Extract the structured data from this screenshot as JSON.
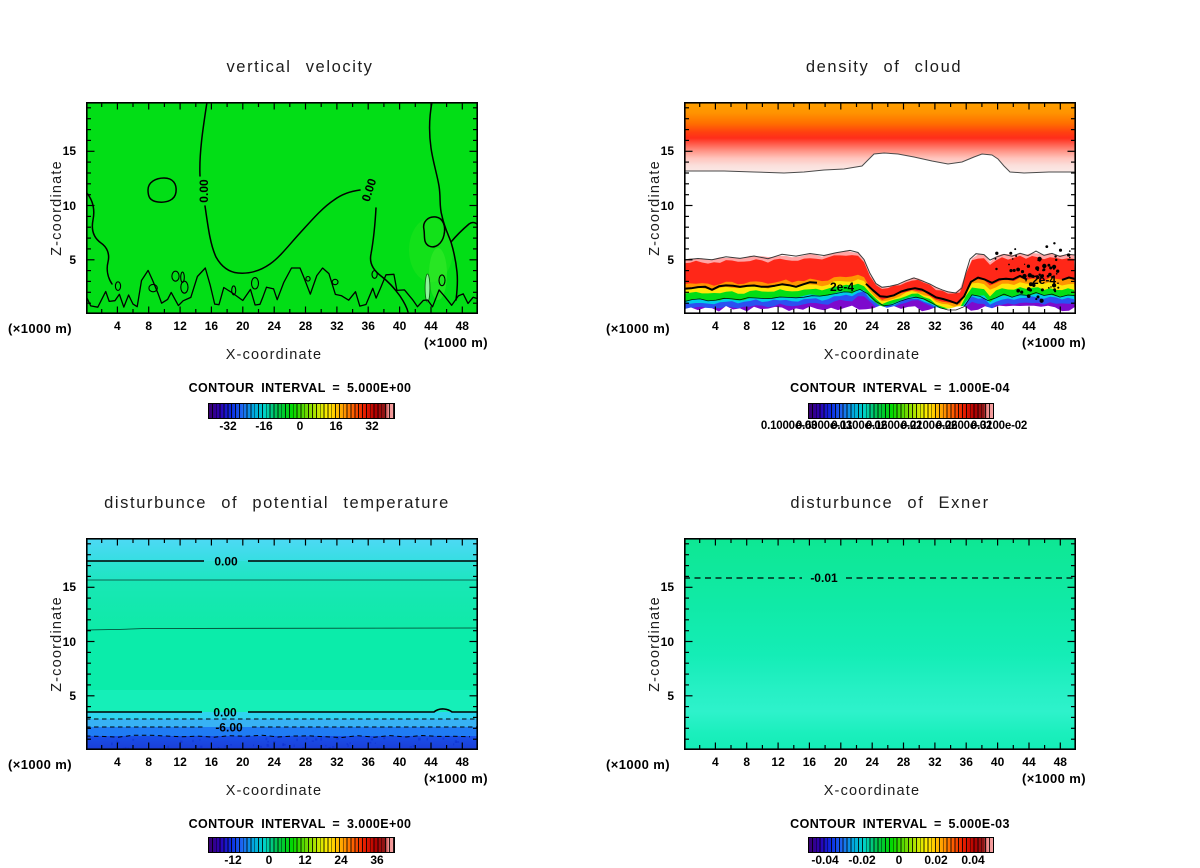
{
  "shared": {
    "x_axis_label": "X-coordinate",
    "z_axis_label": "Z-coordinate",
    "unit_label": "(×1000 m)",
    "x_tick_labels": [
      4,
      8,
      12,
      16,
      20,
      24,
      28,
      32,
      36,
      40,
      44,
      48
    ],
    "z_tick_labels": [
      5,
      10,
      15
    ]
  },
  "panels": {
    "vertical_velocity": {
      "title": "vertical velocity",
      "contour_label": "0.00",
      "colorbar": {
        "title": "CONTOUR INTERVAL = 5.000E+00",
        "ticks": [
          "-32",
          "-16",
          "0",
          "16",
          "32"
        ]
      }
    },
    "density_of_cloud": {
      "title": "density of cloud",
      "contour_label": "2e-4",
      "colorbar": {
        "title": "CONTOUR INTERVAL = 1.000E-04",
        "ticks": [
          "0.1000e-03",
          "0.6000e-03",
          "0.1100e-02",
          "0.1600e-02",
          "0.2100e-02",
          "0.2600e-02",
          "0.3100e-02"
        ]
      }
    },
    "theta": {
      "title": "disturbunce of potential temperature",
      "contour_label_zero": "0.00",
      "contour_label_minus6": "-6.00",
      "colorbar": {
        "title": "CONTOUR INTERVAL = 3.000E+00",
        "ticks": [
          "-12",
          "0",
          "12",
          "24",
          "36"
        ]
      }
    },
    "exner": {
      "title": "disturbunce of Exner",
      "contour_label": "-0.01",
      "colorbar": {
        "title": "CONTOUR INTERVAL = 5.000E-03",
        "ticks": [
          "-0.04",
          "-0.02",
          "0",
          "0.02",
          "0.04"
        ]
      }
    }
  },
  "colors": {
    "vv_field_green": "#02de16",
    "cloud_top_orange": "#ffa200",
    "cloud_red": "#ff2d1a",
    "cloud_pink": "#ffa6a6",
    "theta_cyan": "#4ed9f5",
    "theta_teal": "#0becaa",
    "theta_deep_blue": "#1c3dd6",
    "exner_teal": "#12ebae",
    "contour_black": "#000000"
  },
  "chart_data": [
    {
      "type": "heatmap",
      "subtype": "filled-contour",
      "title": "vertical velocity",
      "xlabel": "X-coordinate (×1000 m)",
      "ylabel": "Z-coordinate (×1000 m)",
      "x_range": [
        0,
        50
      ],
      "z_range": [
        0,
        19.6
      ],
      "x_ticks": [
        4,
        8,
        12,
        16,
        20,
        24,
        28,
        32,
        36,
        40,
        44,
        48
      ],
      "z_ticks": [
        5,
        10,
        15
      ],
      "contour_interval": 5.0,
      "colorbar_ticks": [
        -32,
        -16,
        0,
        16,
        32
      ],
      "labeled_contours": [
        "0.00"
      ],
      "field_summary": "Field is ~0 m/s everywhere (uniform green at the 0 color level). A meandering 0.00 contour runs from the top near x=16 down to z~4.5 at x=20, rises to a plateau z~13 over x=32-36, then descends; a second 0.00 contour descends near x=44-50; small closed 0-contours near (9,12) and (44,7.5); many fine-scale wiggly contours hugging the surface below z~2."
    },
    {
      "type": "heatmap",
      "subtype": "filled-contour",
      "title": "density of cloud",
      "xlabel": "X-coordinate (×1000 m)",
      "ylabel": "Z-coordinate (×1000 m)",
      "x_range": [
        0,
        50
      ],
      "z_range": [
        0,
        19.6
      ],
      "contour_interval": 0.0001,
      "colorbar_ticks": [
        "0.1000e-03",
        "0.6000e-03",
        "0.1100e-02",
        "0.1600e-02",
        "0.2100e-02",
        "0.2600e-02",
        "0.3100e-02"
      ],
      "labeled_contours": [
        "2e-4"
      ],
      "field_summary": "Upper cloud layer from z~13.5 to top: values increase upward from ~1e-4 (pink) to ~2.5e-3 (orange) at the top edge; its base lifts to z~15 over x~23-36. Clear (blank) air between z~5 and z~13.5. Lower stratified cloud below z~5: rainbow layering red/orange/yellow/green/cyan/blue/purple downward, with the labeled 2e-4 contour near z~3; the layer thins to z~3 over x~24-35; speckled convective dots around x~40-44, z~3-6."
    },
    {
      "type": "heatmap",
      "subtype": "filled-contour",
      "title": "disturbunce of potential temperature",
      "xlabel": "X-coordinate (×1000 m)",
      "ylabel": "Z-coordinate (×1000 m)",
      "x_range": [
        0,
        50
      ],
      "z_range": [
        0,
        19.6
      ],
      "contour_interval": 3.0,
      "colorbar_ticks": [
        -12,
        0,
        12,
        24,
        36
      ],
      "labeled_contours": [
        "0.00",
        "-6.00"
      ],
      "profile": [
        {
          "z": "18.0-19.6",
          "approx_value": "-3 (cyan)"
        },
        {
          "z": "15.8-18.0",
          "approx_value": "-1 to 0"
        },
        {
          "z": "3.4-15.8",
          "approx_value": "0 to +2 (teal-green)"
        },
        {
          "z": "2.9-3.4",
          "approx_value": "-3 (cyan)"
        },
        {
          "z": "2.3-2.9",
          "approx_value": "-6 (light blue)"
        },
        {
          "z": "1.4-2.3",
          "approx_value": "-9 (blue)"
        },
        {
          "z": "0-1.4",
          "approx_value": "-12 (deep blue)"
        }
      ],
      "field_summary": "Horizontally uniform layers: solid 0.00 contours at z~18 and z~3.4, dashed negative contours (including -6.00) stacked below z~3, deep blue near-surface minimum."
    },
    {
      "type": "heatmap",
      "subtype": "filled-contour",
      "title": "disturbunce of Exner",
      "xlabel": "X-coordinate (×1000 m)",
      "ylabel": "Z-coordinate (×1000 m)",
      "x_range": [
        0,
        50
      ],
      "z_range": [
        0,
        19.6
      ],
      "contour_interval": 0.005,
      "colorbar_ticks": [
        -0.04,
        -0.02,
        0,
        0.02,
        0.04
      ],
      "labeled_contours": [
        "-0.01"
      ],
      "field_summary": "Nearly uniform teal-green field between -0.01 and 0; a single horizontal dashed -0.01 contour at z~15.8; slightly lighter (closer to 0) band near z~2-5."
    }
  ]
}
